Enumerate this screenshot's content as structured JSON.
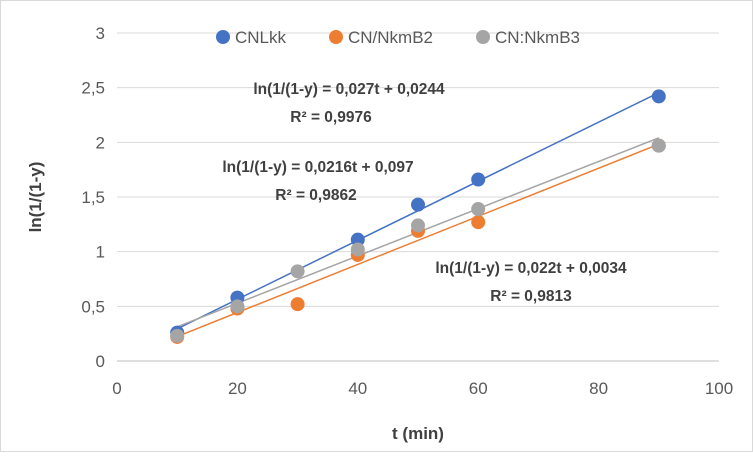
{
  "chart_data": {
    "type": "scatter",
    "xlabel": "t (min)",
    "ylabel": "ln(1/(1-y)",
    "xlim": [
      0,
      100
    ],
    "ylim": [
      0,
      3
    ],
    "xticks": [
      "0",
      "20",
      "40",
      "60",
      "80",
      "100"
    ],
    "yticks": [
      "0",
      "0,5",
      "1",
      "1,5",
      "2",
      "2,5",
      "3"
    ],
    "grid": "horizontal",
    "legend_position": "top",
    "series": [
      {
        "name": "CNLkk",
        "color": "#4472c4",
        "points": [
          [
            10,
            0.26
          ],
          [
            20,
            0.58
          ],
          [
            40,
            1.11
          ],
          [
            50,
            1.43
          ],
          [
            60,
            1.66
          ],
          [
            90,
            2.42
          ]
        ],
        "trendline": {
          "slope": 0.027,
          "intercept": 0.0244,
          "x_range": [
            10,
            90
          ]
        },
        "equation": "ln(1/(1-y) = 0,027t + 0,0244",
        "r2": "R² = 0,9976"
      },
      {
        "name": "CN/NkmB2",
        "color": "#ed7d31",
        "points": [
          [
            10,
            0.22
          ],
          [
            20,
            0.48
          ],
          [
            30,
            0.52
          ],
          [
            40,
            0.97
          ],
          [
            50,
            1.19
          ],
          [
            60,
            1.27
          ],
          [
            90,
            1.97
          ]
        ],
        "trendline": {
          "slope": 0.022,
          "intercept": 0.0034,
          "x_range": [
            10,
            90
          ]
        },
        "equation": "ln(1/(1-y)  = 0,022t + 0,0034",
        "r2": "R² = 0,9813"
      },
      {
        "name": "CN:NkmB3",
        "color": "#a5a5a5",
        "points": [
          [
            10,
            0.23
          ],
          [
            20,
            0.5
          ],
          [
            30,
            0.82
          ],
          [
            40,
            1.02
          ],
          [
            50,
            1.24
          ],
          [
            60,
            1.39
          ],
          [
            90,
            1.97
          ]
        ],
        "trendline": {
          "slope": 0.0216,
          "intercept": 0.097,
          "x_range": [
            10,
            90
          ]
        },
        "equation": "ln(1/(1-y)  = 0,0216t + 0,097",
        "r2": "R² = 0,9862"
      }
    ]
  }
}
